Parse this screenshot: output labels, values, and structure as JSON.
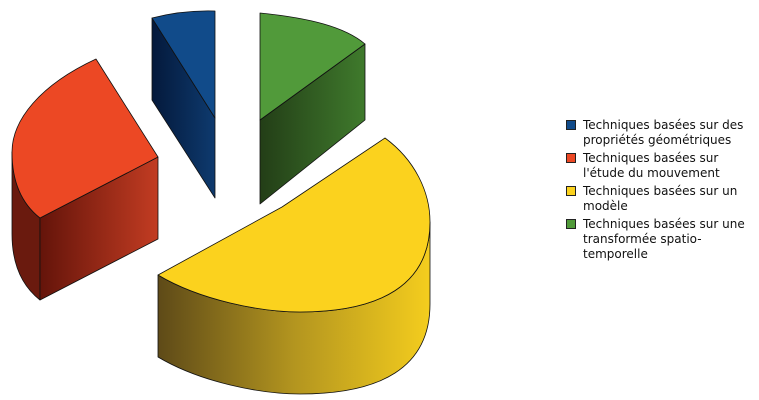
{
  "chart_data": {
    "type": "pie",
    "title": "",
    "style": "3d-exploded",
    "legend_position": "right",
    "slices": [
      {
        "label": "Techniques basées sur des propriétés géométriques",
        "value": 6,
        "color": "#114b8a"
      },
      {
        "label": "Techniques basées sur l'étude du mouvement",
        "value": 26,
        "color": "#ec4824"
      },
      {
        "label": "Techniques basées sur un modèle",
        "value": 55,
        "color": "#fbd21e"
      },
      {
        "label": "Techniques basées sur une transformée spatio-temporelle",
        "value": 13,
        "color": "#519a3a"
      }
    ]
  }
}
